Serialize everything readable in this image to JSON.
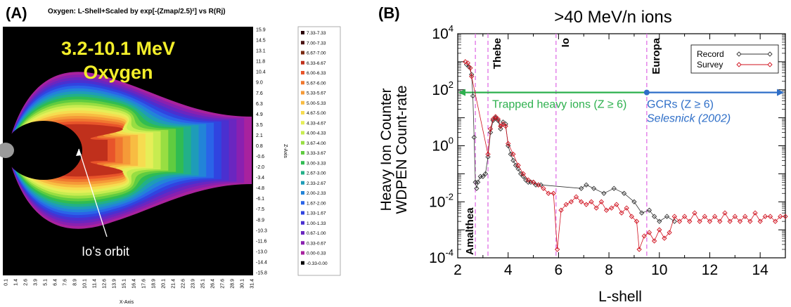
{
  "chart_data": [
    {
      "panel_label": "(A)",
      "type": "heatmap",
      "title": "Oxygen: L-Shell+Scaled by exp[-(Zmap/2.5)²] vs R(Rj)",
      "overlay_title_line1": "3.2-10.1 MeV",
      "overlay_title_line2": "Oxygen",
      "annotation": "Io’s orbit",
      "xlabel": "X-Axis",
      "ylabel": "Z-Axis",
      "x_ticks": [
        "0.1",
        "1.4",
        "2.6",
        "3.9",
        "5.1",
        "6.4",
        "7.6",
        "8.9",
        "10.1",
        "11.4",
        "12.6",
        "13.9",
        "15.1",
        "16.4",
        "17.6",
        "18.9",
        "20.1",
        "21.4",
        "22.6",
        "23.9",
        "25.1",
        "26.4",
        "27.6",
        "28.9",
        "30.1",
        "31.4"
      ],
      "y_ticks": [
        "15.9",
        "14.5",
        "13.1",
        "11.8",
        "10.4",
        "9.0",
        "7.6",
        "6.3",
        "4.9",
        "3.5",
        "2.1",
        "0.8",
        "-0.6",
        "-2.0",
        "-3.4",
        "-4.8",
        "-6.1",
        "-7.5",
        "-8.9",
        "-10.3",
        "-11.6",
        "-13.0",
        "-14.4",
        "-15.8"
      ],
      "legend": [
        {
          "label": "7.33-7.33",
          "color": "#2a0008"
        },
        {
          "label": "7.00-7.33",
          "color": "#4a1414"
        },
        {
          "label": "6.67-7.00",
          "color": "#7a2a12"
        },
        {
          "label": "6.33-6.67",
          "color": "#c0301c"
        },
        {
          "label": "6.00-6.33",
          "color": "#e8542a"
        },
        {
          "label": "5.67-6.00",
          "color": "#f07830"
        },
        {
          "label": "5.33-5.67",
          "color": "#f59a38"
        },
        {
          "label": "5.00-5.33",
          "color": "#f8bc42"
        },
        {
          "label": "4.67-5.00",
          "color": "#f6dc50"
        },
        {
          "label": "4.33-4.67",
          "color": "#e6ee58"
        },
        {
          "label": "4.00-4.33",
          "color": "#c8ec50"
        },
        {
          "label": "3.67-4.00",
          "color": "#98de42"
        },
        {
          "label": "3.33-3.67",
          "color": "#60cc40"
        },
        {
          "label": "3.00-3.33",
          "color": "#30bc52"
        },
        {
          "label": "2.67-3.00",
          "color": "#22b088"
        },
        {
          "label": "2.33-2.67",
          "color": "#1e9cb8"
        },
        {
          "label": "2.00-2.33",
          "color": "#2284d8"
        },
        {
          "label": "1.67-2.00",
          "color": "#2a64e8"
        },
        {
          "label": "1.33-1.67",
          "color": "#3044e0"
        },
        {
          "label": "1.00-1.33",
          "color": "#4a30d0"
        },
        {
          "label": "0.67-1.00",
          "color": "#6a26c0"
        },
        {
          "label": "0.33-0.67",
          "color": "#8a20b0"
        },
        {
          "label": "0.00-0.33",
          "color": "#a8229e"
        },
        {
          "label": "-0.33-0.00",
          "color": "#000000"
        }
      ]
    },
    {
      "panel_label": "(B)",
      "type": "scatter",
      "title": ">40 MeV/n ions",
      "xlabel": "L-shell",
      "ylabel_line1": "Heavy Ion Counter",
      "ylabel_line2": "WDPEN Count-rate",
      "xlim": [
        2,
        15
      ],
      "ylim": [
        0.0001,
        10000
      ],
      "yscale": "log",
      "x_ticks": [
        "2",
        "4",
        "6",
        "8",
        "10",
        "12",
        "14"
      ],
      "y_ticks": [
        {
          "mant": "10",
          "exp": "4"
        },
        {
          "mant": "10",
          "exp": "2"
        },
        {
          "mant": "10",
          "exp": "0"
        },
        {
          "mant": "10",
          "exp": "-2"
        },
        {
          "mant": "10",
          "exp": "-4"
        }
      ],
      "legend_position": "top-right",
      "moon_lines": [
        {
          "name": "Amalthea",
          "x": 2.7,
          "label_pos": "bottom"
        },
        {
          "name": "Thebe",
          "x": 3.2,
          "label_pos": "top"
        },
        {
          "name": "Io",
          "x": 5.9,
          "label_pos": "top"
        },
        {
          "name": "Europa",
          "x": 9.5,
          "label_pos": "top"
        }
      ],
      "annotations": {
        "trapped": "Trapped heavy ions (Z ≥ 6)",
        "gcr": "GCRs (Z ≥ 6)",
        "ref": "Selesnick (2002)",
        "boundary_x": 9.5,
        "arrow_y": 80
      },
      "series": [
        {
          "name": "Record",
          "color": "#333333",
          "points": [
            [
              2.35,
              800
            ],
            [
              2.45,
              650
            ],
            [
              2.55,
              350
            ],
            [
              2.6,
              60
            ],
            [
              2.65,
              2
            ],
            [
              2.7,
              0.05
            ],
            [
              2.75,
              0.03
            ],
            [
              2.8,
              0.05
            ],
            [
              2.9,
              0.08
            ],
            [
              3.0,
              0.08
            ],
            [
              3.1,
              0.1
            ],
            [
              3.2,
              0.4
            ],
            [
              3.3,
              3
            ],
            [
              3.4,
              8
            ],
            [
              3.5,
              10
            ],
            [
              3.6,
              8
            ],
            [
              3.7,
              4
            ],
            [
              3.8,
              7
            ],
            [
              3.9,
              6
            ],
            [
              4.0,
              1
            ],
            [
              4.1,
              0.5
            ],
            [
              4.2,
              0.3
            ],
            [
              4.3,
              0.2
            ],
            [
              4.4,
              0.15
            ],
            [
              4.5,
              0.1
            ],
            [
              4.6,
              0.08
            ],
            [
              4.7,
              0.06
            ],
            [
              4.8,
              0.05
            ],
            [
              4.9,
              0.05
            ],
            [
              5.0,
              0.05
            ],
            [
              5.1,
              0.04
            ],
            [
              5.2,
              0.04
            ],
            [
              5.3,
              0.04
            ],
            [
              6.9,
              0.03
            ],
            [
              7.1,
              0.04
            ],
            [
              7.4,
              0.03
            ],
            [
              7.8,
              0.02
            ],
            [
              8.2,
              0.03
            ],
            [
              8.6,
              0.02
            ],
            [
              9.0,
              0.01
            ],
            [
              9.3,
              0.004
            ],
            [
              9.6,
              0.005
            ],
            [
              9.8,
              0.003
            ],
            [
              10.0,
              0.002
            ],
            [
              10.3,
              0.003
            ],
            [
              10.6,
              0.002
            ]
          ]
        },
        {
          "name": "Survey",
          "color": "#d0101e",
          "points": [
            [
              2.3,
              1000
            ],
            [
              2.4,
              900
            ],
            [
              2.5,
              600
            ],
            [
              2.55,
              300
            ],
            [
              3.2,
              0.5
            ],
            [
              3.3,
              4
            ],
            [
              3.4,
              9
            ],
            [
              3.5,
              11
            ],
            [
              3.6,
              9
            ],
            [
              3.7,
              5
            ],
            [
              3.8,
              6
            ],
            [
              3.9,
              5
            ],
            [
              4.0,
              1.2
            ],
            [
              4.2,
              0.5
            ],
            [
              4.4,
              0.2
            ],
            [
              4.6,
              0.1
            ],
            [
              4.8,
              0.06
            ],
            [
              5.0,
              0.05
            ],
            [
              5.2,
              0.04
            ],
            [
              5.4,
              0.03
            ],
            [
              5.6,
              0.02
            ],
            [
              5.8,
              0.02
            ],
            [
              5.95,
              0.0002
            ],
            [
              6.1,
              0.005
            ],
            [
              6.3,
              0.008
            ],
            [
              6.5,
              0.01
            ],
            [
              6.7,
              0.015
            ],
            [
              6.9,
              0.01
            ],
            [
              7.1,
              0.008
            ],
            [
              7.3,
              0.01
            ],
            [
              7.5,
              0.006
            ],
            [
              7.7,
              0.01
            ],
            [
              7.9,
              0.005
            ],
            [
              8.1,
              0.006
            ],
            [
              8.3,
              0.008
            ],
            [
              8.5,
              0.004
            ],
            [
              8.7,
              0.006
            ],
            [
              8.9,
              0.003
            ],
            [
              9.1,
              0.002
            ],
            [
              9.2,
              0.0002
            ],
            [
              9.4,
              0.0006
            ],
            [
              9.6,
              0.0008
            ],
            [
              9.8,
              0.0004
            ],
            [
              10.0,
              0.001
            ],
            [
              10.2,
              0.0005
            ],
            [
              10.4,
              0.0008
            ],
            [
              10.6,
              0.003
            ],
            [
              10.8,
              0.002
            ],
            [
              11.0,
              0.003
            ],
            [
              11.2,
              0.002
            ],
            [
              11.4,
              0.004
            ],
            [
              11.6,
              0.002
            ],
            [
              11.8,
              0.003
            ],
            [
              12.0,
              0.002
            ],
            [
              12.2,
              0.003
            ],
            [
              12.4,
              0.002
            ],
            [
              12.6,
              0.004
            ],
            [
              12.8,
              0.002
            ],
            [
              13.0,
              0.003
            ],
            [
              13.2,
              0.002
            ],
            [
              13.4,
              0.003
            ],
            [
              13.6,
              0.002
            ],
            [
              13.8,
              0.004
            ],
            [
              14.0,
              0.002
            ],
            [
              14.2,
              0.003
            ],
            [
              14.4,
              0.003
            ],
            [
              14.6,
              0.002
            ],
            [
              14.8,
              0.003
            ],
            [
              15.0,
              0.003
            ]
          ]
        }
      ]
    }
  ]
}
